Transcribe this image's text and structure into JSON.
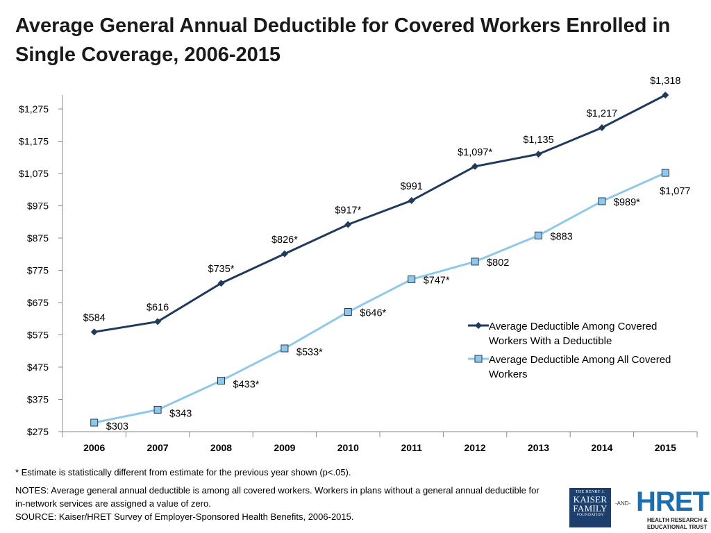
{
  "title": "Average General Annual Deductible for Covered Workers Enrolled in Single Coverage, 2006-2015",
  "chart_data": {
    "type": "line",
    "title": "Average General Annual Deductible for Covered Workers Enrolled in Single Coverage, 2006-2015",
    "xlabel": "",
    "ylabel": "",
    "categories": [
      "2006",
      "2007",
      "2008",
      "2009",
      "2010",
      "2011",
      "2012",
      "2013",
      "2014",
      "2015"
    ],
    "y_ticks": [
      275,
      375,
      475,
      575,
      675,
      775,
      875,
      975,
      1075,
      1175,
      1275
    ],
    "y_tick_labels": [
      "$275",
      "$375",
      "$475",
      "$575",
      "$675",
      "$775",
      "$875",
      "$975",
      "$1,075",
      "$1,175",
      "$1,275"
    ],
    "ylim": [
      275,
      1318
    ],
    "grid": false,
    "legend_position": "middle-right",
    "series": [
      {
        "name": "Average Deductible Among Covered Workers With a Deductible",
        "color": "#1f3a5c",
        "marker": "diamond",
        "values": [
          584,
          616,
          735,
          826,
          917,
          991,
          1097,
          1135,
          1217,
          1318
        ],
        "labels": [
          "$584",
          "$616",
          "$735*",
          "$826*",
          "$917*",
          "$991",
          "$1,097*",
          "$1,135",
          "$1,217",
          "$1,318"
        ]
      },
      {
        "name": "Average Deductible Among All Covered Workers",
        "color": "#8fc8e8",
        "marker": "square",
        "values": [
          303,
          343,
          433,
          533,
          646,
          747,
          802,
          883,
          989,
          1077
        ],
        "labels": [
          "$303",
          "$343",
          "$433*",
          "$533*",
          "$646*",
          "$747*",
          "$802",
          "$883",
          "$989*",
          "$1,077"
        ]
      }
    ]
  },
  "legend": {
    "series1": "Average Deductible Among Covered Workers With a Deductible",
    "series2": "Average Deductible Among All Covered Workers"
  },
  "footnote": "* Estimate is statistically different from estimate for the previous year shown (p<.05).",
  "notes": "NOTES: Average general annual deductible  is among  all covered workers. Workers in plans without a general annual deductible for in-network services are assigned a value of zero.",
  "source": "SOURCE:  Kaiser/HRET Survey of Employer-Sponsored Health Benefits, 2006-2015.",
  "logos": {
    "kff_small": "THE HENRY J.",
    "kff_line1": "KAISER",
    "kff_line2": "FAMILY",
    "kff_foot": "FOUNDATION",
    "and": "-AND-",
    "hret": "HRET",
    "hret_sub1": "HEALTH RESEARCH &",
    "hret_sub2": "EDUCATIONAL TRUST"
  }
}
